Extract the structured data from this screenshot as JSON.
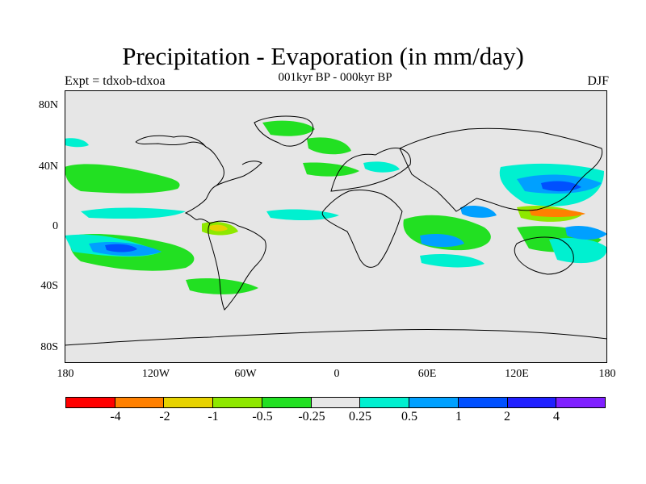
{
  "title": "Precipitation - Evaporation (in mm/day)",
  "subtitle": "001kyr BP - 000kyr BP",
  "experiment_label": "Expt = tdxob-tdxoa",
  "season_label": "DJF",
  "lat_labels": [
    "80N",
    "40N",
    "0",
    "40S",
    "80S"
  ],
  "lon_labels": [
    "180",
    "120W",
    "60W",
    "0",
    "60E",
    "120E",
    "180"
  ],
  "colorbar": {
    "colors": [
      "#ff0000",
      "#ff8000",
      "#e6d200",
      "#8ee800",
      "#22e022",
      "#e6e6e6",
      "#00f0d0",
      "#00a0ff",
      "#0050ff",
      "#2020ff",
      "#8020ff"
    ],
    "labels": [
      "-4",
      "-2",
      "-1",
      "-0.5",
      "-0.25",
      "0.25",
      "0.5",
      "1",
      "2",
      "4"
    ]
  },
  "map": {
    "background_color": "#e6e6e6",
    "coastline_color": "#000000"
  }
}
